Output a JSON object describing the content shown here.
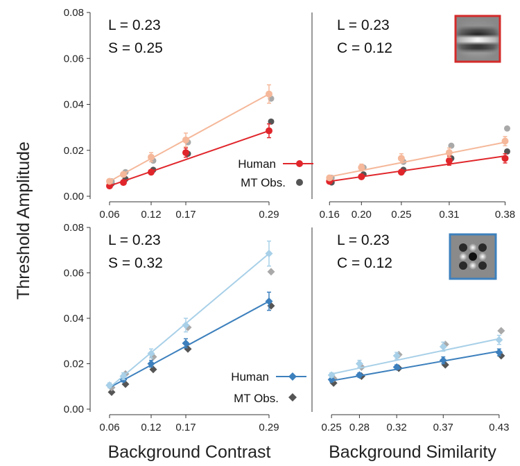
{
  "figure": {
    "ylabel": "Threshold Amplitude",
    "xlabel_left": "Background Contrast",
    "xlabel_right": "Background Similarity"
  },
  "colors": {
    "red_human": "#e0262b",
    "red_mt": "#f5b89a",
    "blue_human": "#3d80bd",
    "blue_mt": "#a8d0e8",
    "mt_obs_marker": "#555555",
    "stim_border_top": "#d42a2a",
    "stim_border_bottom": "#3d80bd"
  },
  "chart_data": [
    {
      "type": "line",
      "panel": "top-left",
      "annotation": [
        "L = 0.23",
        "S = 0.25"
      ],
      "xlim": [
        0.04,
        0.31
      ],
      "x": [
        0.06,
        0.08,
        0.12,
        0.17,
        0.29
      ],
      "x_ticks": [
        0.06,
        0.12,
        0.17,
        0.29
      ],
      "x_tick_labels": [
        "0.06",
        "0.12",
        "0.17",
        "0.29"
      ],
      "ylim": [
        0.0,
        0.08
      ],
      "y_ticks": [
        0.0,
        0.02,
        0.04,
        0.06,
        0.08
      ],
      "y_tick_labels": [
        "0.00",
        "0.02",
        "0.04",
        "0.06",
        "0.08"
      ],
      "marker": "circle",
      "series": [
        {
          "name": "Human",
          "color_key": "red_human",
          "values": [
            0.0045,
            0.006,
            0.0105,
            0.019,
            0.0285
          ],
          "errors": [
            0.001,
            0.001,
            0.001,
            0.002,
            0.003
          ],
          "fit": [
            [
              0.06,
              0.0045
            ],
            [
              0.29,
              0.0285
            ]
          ]
        },
        {
          "color_key": "red_mt",
          "values": [
            0.0065,
            0.0095,
            0.017,
            0.0245,
            0.0445
          ],
          "errors": [
            0.001,
            0.001,
            0.002,
            0.003,
            0.004
          ],
          "fit": [
            [
              0.06,
              0.0065
            ],
            [
              0.29,
              0.0445
            ]
          ]
        },
        {
          "name": "MT Obs.",
          "color_key": "mt_obs_marker",
          "values": [
            0.0055,
            0.0075,
            0.0115,
            0.0185,
            0.0325
          ],
          "gray": true
        },
        {
          "color_key": "mt_obs_marker",
          "values": [
            0.0065,
            0.0105,
            0.0155,
            0.0235,
            0.0425
          ],
          "light_gray": true
        }
      ],
      "legend": {
        "placement": "bottom-right",
        "entries": [
          "Human",
          "MT Obs."
        ]
      }
    },
    {
      "type": "line",
      "panel": "top-right",
      "annotation": [
        "L = 0.23",
        "C = 0.12"
      ],
      "xlim": [
        0.145,
        0.39
      ],
      "x": [
        0.16,
        0.2,
        0.25,
        0.31,
        0.38
      ],
      "x_ticks": [
        0.16,
        0.2,
        0.25,
        0.31,
        0.38
      ],
      "x_tick_labels": [
        "0.16",
        "0.20",
        "0.25",
        "0.31",
        "0.38"
      ],
      "ylim": [
        0.0,
        0.08
      ],
      "marker": "circle",
      "series": [
        {
          "name": "Human",
          "color_key": "red_human",
          "values": [
            0.0065,
            0.0085,
            0.0105,
            0.0155,
            0.0165
          ],
          "errors": [
            0.001,
            0.001,
            0.001,
            0.002,
            0.002
          ],
          "fit": [
            [
              0.16,
              0.0065
            ],
            [
              0.38,
              0.0175
            ]
          ]
        },
        {
          "color_key": "red_mt",
          "values": [
            0.008,
            0.0125,
            0.0165,
            0.019,
            0.024
          ],
          "errors": [
            0.001,
            0.0015,
            0.002,
            0.002,
            0.002
          ],
          "fit": [
            [
              0.16,
              0.0085
            ],
            [
              0.38,
              0.0235
            ]
          ]
        },
        {
          "color_key": "mt_obs_marker",
          "values": [
            0.006,
            0.0095,
            0.0115,
            0.0165,
            0.0195
          ],
          "gray": true
        },
        {
          "color_key": "mt_obs_marker",
          "values": [
            0.008,
            0.0125,
            0.015,
            0.022,
            0.0295
          ],
          "light_gray": true
        }
      ]
    },
    {
      "type": "line",
      "panel": "bottom-left",
      "annotation": [
        "L = 0.23",
        "S = 0.32"
      ],
      "xlim": [
        0.04,
        0.31
      ],
      "x": [
        0.06,
        0.08,
        0.12,
        0.17,
        0.29
      ],
      "x_ticks": [
        0.06,
        0.12,
        0.17,
        0.29
      ],
      "x_tick_labels": [
        "0.06",
        "0.12",
        "0.17",
        "0.29"
      ],
      "ylim": [
        0.0,
        0.08
      ],
      "y_ticks": [
        0.0,
        0.02,
        0.04,
        0.06,
        0.08
      ],
      "y_tick_labels": [
        "0.00",
        "0.02",
        "0.04",
        "0.06",
        "0.08"
      ],
      "marker": "diamond",
      "series": [
        {
          "name": "Human",
          "color_key": "blue_human",
          "values": [
            0.0105,
            0.013,
            0.02,
            0.029,
            0.0475
          ],
          "errors": [
            0.001,
            0.001,
            0.0015,
            0.002,
            0.004
          ],
          "fit": [
            [
              0.06,
              0.0095
            ],
            [
              0.29,
              0.0475
            ]
          ]
        },
        {
          "color_key": "blue_mt",
          "values": [
            0.0105,
            0.0145,
            0.0245,
            0.037,
            0.0685
          ],
          "errors": [
            0.001,
            0.0015,
            0.002,
            0.003,
            0.0055
          ],
          "fit": [
            [
              0.06,
              0.0095
            ],
            [
              0.29,
              0.0685
            ]
          ]
        },
        {
          "name": "MT Obs.",
          "color_key": "mt_obs_marker",
          "values": [
            0.0075,
            0.011,
            0.0175,
            0.0265,
            0.0455
          ],
          "gray": true
        },
        {
          "color_key": "mt_obs_marker",
          "values": [
            0.0095,
            0.0155,
            0.023,
            0.036,
            0.0605
          ],
          "light_gray": true
        }
      ],
      "legend": {
        "placement": "bottom-right",
        "entries": [
          "Human",
          "MT Obs."
        ]
      }
    },
    {
      "type": "line",
      "panel": "bottom-right",
      "annotation": [
        "L = 0.23",
        "C = 0.12"
      ],
      "xlim": [
        0.235,
        0.445
      ],
      "x": [
        0.25,
        0.28,
        0.32,
        0.37,
        0.43
      ],
      "x_ticks": [
        0.25,
        0.28,
        0.32,
        0.37,
        0.43
      ],
      "x_tick_labels": [
        "0.25",
        "0.28",
        "0.32",
        "0.37",
        "0.43"
      ],
      "ylim": [
        0.0,
        0.08
      ],
      "marker": "diamond",
      "series": [
        {
          "name": "Human",
          "color_key": "blue_human",
          "values": [
            0.013,
            0.015,
            0.0185,
            0.0215,
            0.025
          ],
          "errors": [
            0.001,
            0.001,
            0.001,
            0.0015,
            0.0015
          ],
          "fit": [
            [
              0.25,
              0.0125
            ],
            [
              0.43,
              0.0255
            ]
          ]
        },
        {
          "color_key": "blue_mt",
          "values": [
            0.015,
            0.02,
            0.0235,
            0.0275,
            0.0305
          ],
          "errors": [
            0.001,
            0.0015,
            0.0015,
            0.002,
            0.002
          ],
          "fit": [
            [
              0.25,
              0.0155
            ],
            [
              0.43,
              0.031
            ]
          ]
        },
        {
          "color_key": "mt_obs_marker",
          "values": [
            0.0115,
            0.0145,
            0.018,
            0.0195,
            0.0235
          ],
          "gray": true
        },
        {
          "color_key": "mt_obs_marker",
          "values": [
            0.0135,
            0.0185,
            0.024,
            0.0285,
            0.0345
          ],
          "light_gray": true
        }
      ]
    }
  ],
  "legends": {
    "top": {
      "human": "Human",
      "mt": "MT Obs."
    },
    "bottom": {
      "human": "Human",
      "mt": "MT Obs."
    }
  }
}
